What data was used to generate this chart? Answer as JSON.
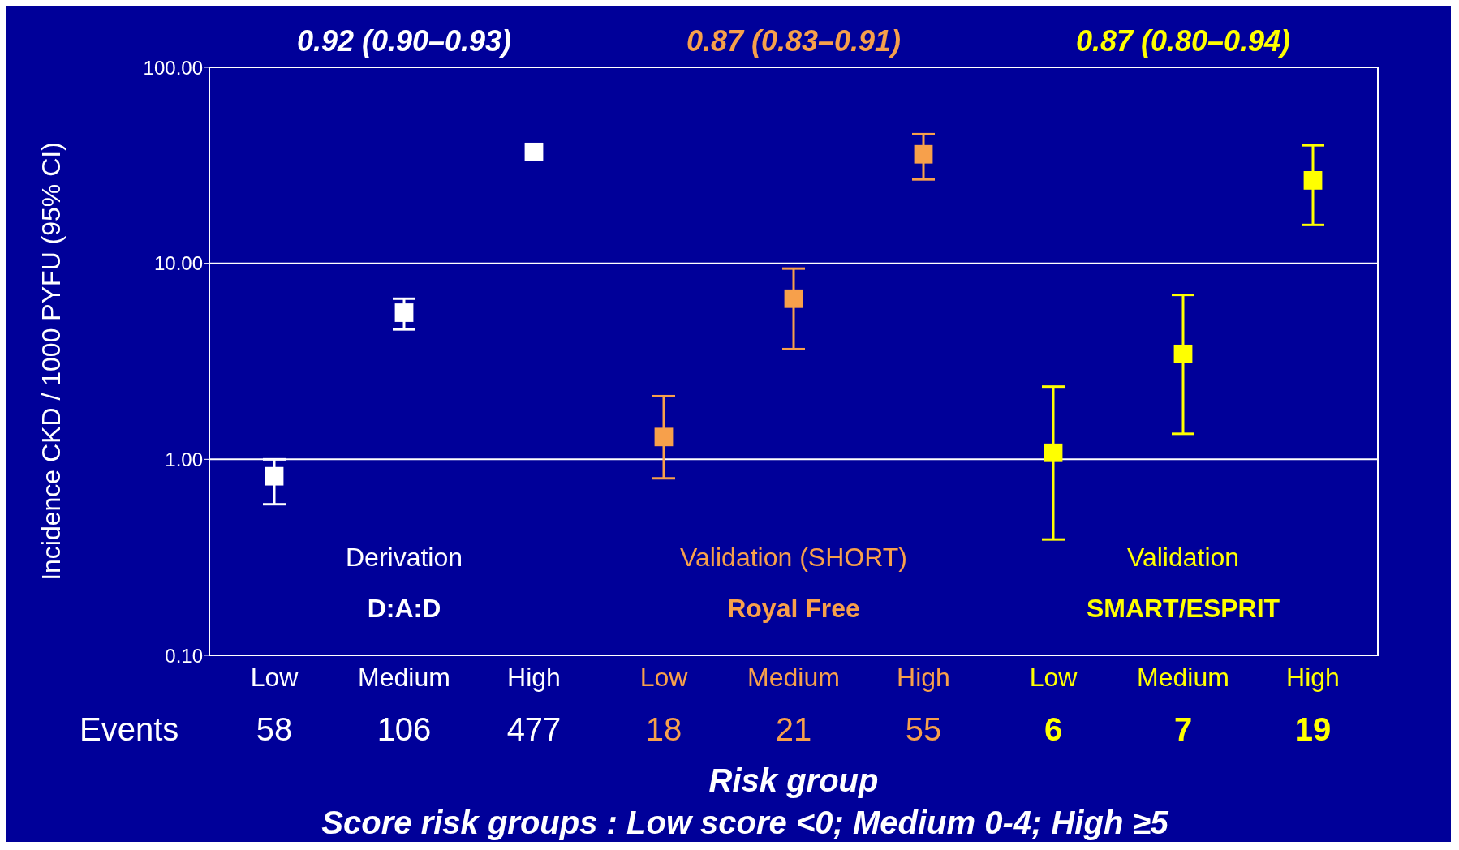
{
  "chart_data": {
    "type": "scatter",
    "xlabel": "Risk group",
    "ylabel": "Incidence CKD / 1000 PYFU (95% CI)",
    "categories": [
      "Low",
      "Medium",
      "High",
      "Low",
      "Medium",
      "High",
      "Low",
      "Medium",
      "High"
    ],
    "series": [
      {
        "color": "#ffffff",
        "values": [
          0.82,
          5.6,
          37,
          null,
          null,
          null,
          null,
          null,
          null
        ],
        "errors": [
          [
            0.59,
            1.0
          ],
          [
            4.6,
            6.6
          ],
          null,
          null,
          null,
          null,
          null,
          null,
          null
        ]
      },
      {
        "color": "#f7a04b",
        "values": [
          null,
          null,
          null,
          1.3,
          6.6,
          36,
          null,
          null,
          null
        ],
        "errors": [
          null,
          null,
          null,
          [
            0.8,
            2.1
          ],
          [
            3.65,
            9.4
          ],
          [
            26.8,
            45.6
          ],
          null,
          null,
          null
        ]
      },
      {
        "color": "#ffff00",
        "values": [
          null,
          null,
          null,
          null,
          null,
          null,
          1.08,
          3.45,
          26.5
        ],
        "errors": [
          null,
          null,
          null,
          null,
          null,
          null,
          [
            0.39,
            2.35
          ],
          [
            1.35,
            6.9
          ],
          [
            15.7,
            40
          ]
        ]
      }
    ],
    "ylim": [
      0.1,
      100
    ],
    "yticks": [
      {
        "value": 0.1,
        "label": "0.10"
      },
      {
        "value": 1,
        "label": "1.00"
      },
      {
        "value": 10,
        "label": "10.00"
      },
      {
        "value": 100,
        "label": "100.00"
      }
    ],
    "log": "y",
    "grid": "y",
    "marker": "square",
    "annotations": [
      "0.92 (0.90–0.93)",
      "0.87 (0.83–0.91)",
      "0.87 (0.80–0.94)",
      "Derivation",
      "Validation (SHORT)",
      "Validation",
      "D:A:D",
      "Royal Free",
      "SMART/ESPRIT",
      "Events",
      "58",
      "106",
      "477",
      "18",
      "21",
      "55",
      "6",
      "7",
      "19",
      "Score risk groups : Low score <0; Medium 0-4; High ≥5"
    ]
  }
}
